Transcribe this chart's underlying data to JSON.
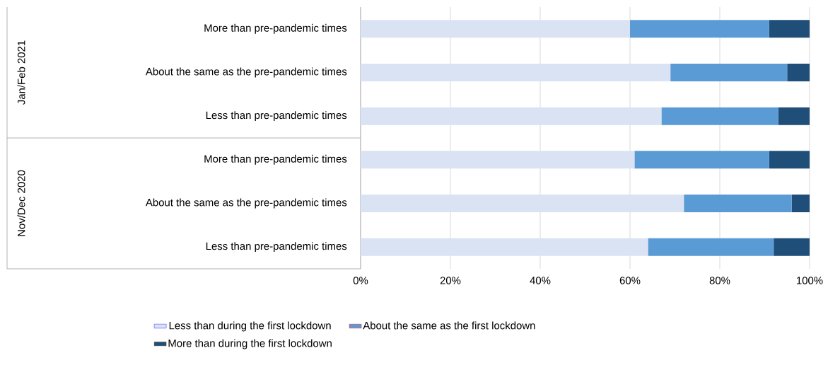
{
  "chart_data": {
    "type": "bar",
    "orientation": "horizontal",
    "stacked": true,
    "categories": [
      "More than pre-pandemic times",
      "About the same as the pre-pandemic times",
      "Less than pre-pandemic times",
      "More than pre-pandemic times",
      "About the same as the pre-pandemic times",
      "Less than pre-pandemic times"
    ],
    "series": [
      {
        "name": "Less than during the first lockdown",
        "color": "#dae3f3",
        "values": [
          60,
          69,
          67,
          61,
          72,
          64
        ]
      },
      {
        "name": "About the same as the first lockdown",
        "color": "#5b9bd5",
        "values": [
          31,
          26,
          26,
          30,
          24,
          28
        ]
      },
      {
        "name": "More than during the first lockdown",
        "color": "#1f4e79",
        "values": [
          9,
          5,
          7,
          9,
          4,
          8
        ]
      }
    ],
    "xlim": [
      0,
      100
    ],
    "xticks": [
      {
        "value": 0,
        "label": "0%"
      },
      {
        "value": 20,
        "label": "20%"
      },
      {
        "value": 40,
        "label": "40%"
      },
      {
        "value": 60,
        "label": "60%"
      },
      {
        "value": 80,
        "label": "80%"
      },
      {
        "value": 100,
        "label": "100%"
      }
    ],
    "annotations": [
      "Jan/Feb 2021",
      "Nov/Dec 2020"
    ],
    "grid": "x",
    "legend": "bottom"
  }
}
